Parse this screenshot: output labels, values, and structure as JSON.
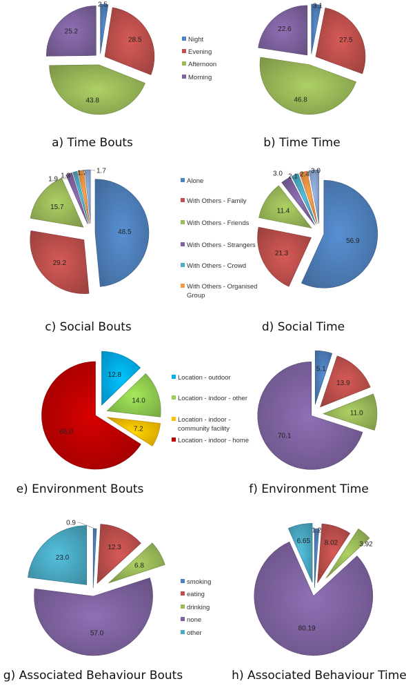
{
  "colors": {
    "blue": "#4F81BD",
    "red": "#C0504D",
    "green": "#9BBB59",
    "purple": "#8064A2",
    "teal": "#4BACC6",
    "orange": "#F79646",
    "steel": "#8DA9D6",
    "cyan": "#00B0F0",
    "lime": "#92D050",
    "yellow": "#FFC000",
    "darkred": "#C00000"
  },
  "legends": {
    "time": [
      "Night",
      "Evening",
      "Afternoon",
      "Morning"
    ],
    "social": [
      "Alone",
      "With Others - Family",
      "With Others - Friends",
      "With Others - Strangers",
      "With Others - Crowd",
      "With Others - Organised",
      "Group"
    ],
    "environment": [
      "Location - outdoor",
      "Location - indoor - other",
      "Location - indoor -",
      "community facility",
      "Location - indoor - home"
    ],
    "behaviour": [
      "smoking",
      "eating",
      "drinking",
      "none",
      "other"
    ]
  },
  "chart_data": [
    {
      "type": "pie",
      "title": "a) Time Bouts",
      "labels": [
        "2.5",
        "28.5",
        "43.8",
        "25.2"
      ],
      "values": [
        2.5,
        28.5,
        43.8,
        25.2
      ]
    },
    {
      "type": "pie",
      "title": "b) Time Time",
      "labels": [
        "3.1",
        "27.5",
        "46.8",
        "22.6"
      ],
      "values": [
        3.1,
        27.5,
        46.8,
        22.6
      ]
    },
    {
      "type": "pie",
      "title": "c) Social Bouts",
      "labels": [
        "48.5",
        "29.2",
        "15.7",
        "1.9",
        "1.3",
        "1.7",
        "1.7"
      ],
      "values": [
        48.5,
        29.2,
        15.7,
        1.9,
        1.3,
        1.7,
        1.7
      ]
    },
    {
      "type": "pie",
      "title": "d) Social Time",
      "labels": [
        "56.9",
        "21.3",
        "11.4",
        "3.0",
        "2.1",
        "2.4",
        "3.0"
      ],
      "values": [
        56.9,
        21.3,
        11.4,
        3.0,
        2.1,
        2.4,
        3.0
      ]
    },
    {
      "type": "pie",
      "title": "e) Environment Bouts",
      "labels": [
        "12.8",
        "14.0",
        "7.2",
        "66.0"
      ],
      "values": [
        12.8,
        14.0,
        7.2,
        66.0
      ]
    },
    {
      "type": "pie",
      "title": "f) Environment Time",
      "labels": [
        "5.1",
        "13.9",
        "11.0",
        "70.1"
      ],
      "values": [
        5.1,
        13.9,
        11.0,
        70.1
      ]
    },
    {
      "type": "pie",
      "title": "g) Associated Behaviour Bouts",
      "labels": [
        "0.9",
        "12.3",
        "6.8",
        "57.0",
        "23.0"
      ],
      "values": [
        0.9,
        12.3,
        6.8,
        57.0,
        23.0
      ]
    },
    {
      "type": "pie",
      "title": "h) Associated Behaviour Time",
      "labels": [
        "1.21",
        "8.02",
        "3.92",
        "80.19",
        "6.65"
      ],
      "values": [
        1.21,
        8.02,
        3.92,
        80.19,
        6.65
      ]
    }
  ]
}
